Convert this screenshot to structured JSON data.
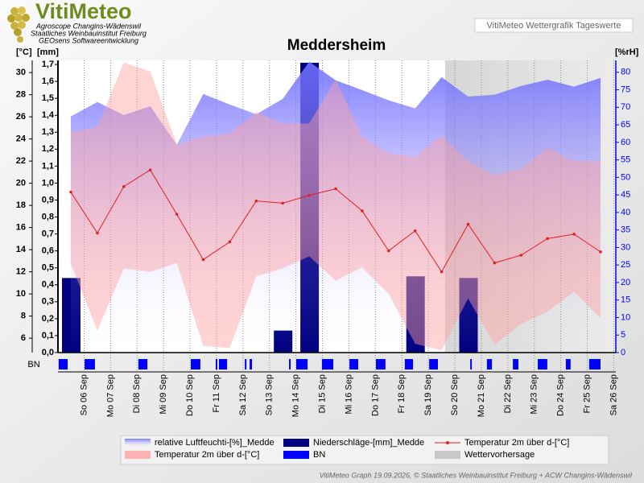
{
  "header": {
    "logo": "VitiMeteo",
    "lines": [
      "Agroscope Changins-Wädenswil",
      "Staatliches Weinbauinstitut Freiburg",
      "GEOsens Softwareentwicklung"
    ],
    "badge": "VitiMeteo Wettergrafik Tageswerte"
  },
  "footer": "VitiMeteo Graph 19.09.2026, © Staatliches Weinbauinstitut Freiburg + ACW Changins-Wädenswil",
  "chart_data": {
    "type": "weather",
    "title": "Meddersheim",
    "ylabel": "[°C]",
    "y3label": "[mm]",
    "y2label": "[%rH]",
    "strip_label": "BN",
    "categories": [
      "So 06 Sep",
      "Mo 07 Sep",
      "Di 08 Sep",
      "Mi 09 Sep",
      "Do 10 Sep",
      "Fr 11 Sep",
      "Sa 12 Sep",
      "So 13 Sep",
      "Mo 14 Sep",
      "Di 15 Sep",
      "Mi 16 Sep",
      "Do 17 Sep",
      "Fr 18 Sep",
      "Sa 19 Sep",
      "So 20 Sep",
      "Mo 21 Sep",
      "Di 22 Sep",
      "Mi 23 Sep",
      "Do 24 Sep",
      "Fr 25 Sep",
      "Sa 26 Sep"
    ],
    "ylim": [
      4.7,
      31.1
    ],
    "yticks": [
      6,
      8,
      10,
      12,
      14,
      16,
      18,
      20,
      22,
      24,
      26,
      28,
      30
    ],
    "y2lim": [
      0,
      83.4
    ],
    "y2ticks": [
      0,
      5,
      10,
      15,
      20,
      25,
      30,
      35,
      40,
      45,
      50,
      55,
      60,
      65,
      70,
      75,
      80
    ],
    "y3lim": [
      0,
      1.724
    ],
    "y3ticks": [
      {
        "value": 0,
        "label": "0,0"
      },
      {
        "value": 0.1,
        "label": "0,1"
      },
      {
        "value": 0.2,
        "label": "0,2"
      },
      {
        "value": 0.3,
        "label": "0,3"
      },
      {
        "value": 0.4,
        "label": "0,4"
      },
      {
        "value": 0.5,
        "label": "0,5"
      },
      {
        "value": 0.6,
        "label": "0,6"
      },
      {
        "value": 0.7,
        "label": "0,7"
      },
      {
        "value": 0.8,
        "label": "0,8"
      },
      {
        "value": 0.9,
        "label": "0,9"
      },
      {
        "value": 1.0,
        "label": "1,0"
      },
      {
        "value": 1.1,
        "label": "1,1"
      },
      {
        "value": 1.2,
        "label": "1,2"
      },
      {
        "value": 1.3,
        "label": "1,3"
      },
      {
        "value": 1.4,
        "label": "1,4"
      },
      {
        "value": 1.5,
        "label": "1,5"
      },
      {
        "value": 1.6,
        "label": "1,6"
      },
      {
        "value": 1.7,
        "label": "1,7"
      }
    ],
    "grid": true,
    "series": [
      {
        "name": "relative Luftfeuchti-[%]_Medde",
        "kind": "area",
        "axis": "y2",
        "color": "#6f6fff",
        "values": [
          67.4,
          71.5,
          67.8,
          70.3,
          59.3,
          73.8,
          70.8,
          68.0,
          72.4,
          83.0,
          77.7,
          74.9,
          72.0,
          69.7,
          78.6,
          73.1,
          73.6,
          76.1,
          77.9,
          75.9,
          78.4
        ]
      },
      {
        "name": "Niederschläge-[mm]_Medde",
        "kind": "bar",
        "axis": "y3",
        "color": "#000080",
        "values": [
          0.44,
          0,
          0,
          0,
          0,
          0,
          0,
          0,
          0.13,
          1.71,
          0,
          0,
          0,
          0.45,
          0,
          0.44,
          0,
          0,
          0,
          0,
          0
        ]
      },
      {
        "name": "Temperatur 2m über d-[°C]",
        "kind": "line",
        "axis": "y",
        "color": "#e02020",
        "values": [
          19.2,
          15.5,
          19.7,
          21.2,
          17.2,
          13.1,
          14.7,
          18.4,
          18.2,
          18.9,
          19.5,
          17.5,
          13.9,
          15.7,
          12.0,
          16.3,
          12.8,
          13.5,
          15.0,
          15.4,
          13.8
        ]
      },
      {
        "name": "Temperatur 2m über d-[°C]",
        "kind": "range",
        "axis": "y",
        "color": "#ffa0a0",
        "max": [
          24.6,
          25.1,
          30.9,
          30.1,
          23.5,
          24.2,
          24.5,
          26.4,
          25.4,
          25.4,
          29.4,
          24.2,
          22.7,
          22.4,
          24.3,
          22.0,
          20.7,
          21.3,
          23.2,
          22.0,
          22.0
        ],
        "min": [
          12.7,
          6.7,
          12.3,
          12.0,
          12.8,
          5.3,
          5.1,
          11.6,
          12.3,
          13.4,
          11.2,
          12.4,
          10.0,
          5.5,
          4.9,
          9.6,
          5.4,
          7.3,
          8.4,
          10.2,
          7.8
        ]
      },
      {
        "name": "BN",
        "kind": "strip",
        "color": "#0000ff",
        "intervals": [
          [
            -0.46,
            -0.12
          ],
          [
            0.52,
            0.91
          ],
          [
            2.55,
            2.89
          ],
          [
            4.53,
            4.89
          ],
          [
            5.47,
            5.53
          ],
          [
            5.59,
            5.9
          ],
          [
            6.57,
            6.63
          ],
          [
            6.75,
            6.84
          ],
          [
            8.24,
            8.3
          ],
          [
            8.51,
            8.94
          ],
          [
            9.48,
            9.91
          ],
          [
            10.52,
            10.85
          ],
          [
            11.52,
            11.88
          ],
          [
            12.61,
            12.92
          ],
          [
            13.53,
            13.86
          ],
          [
            15.08,
            15.14
          ],
          [
            15.71,
            15.9
          ],
          [
            16.69,
            16.9
          ],
          [
            17.63,
            17.99
          ],
          [
            18.69,
            18.87
          ],
          [
            19.57,
            20.0
          ]
        ]
      },
      {
        "name": "Wettervorhersage",
        "kind": "shade",
        "color": "#c8c8c8",
        "start": 14.13
      }
    ]
  }
}
